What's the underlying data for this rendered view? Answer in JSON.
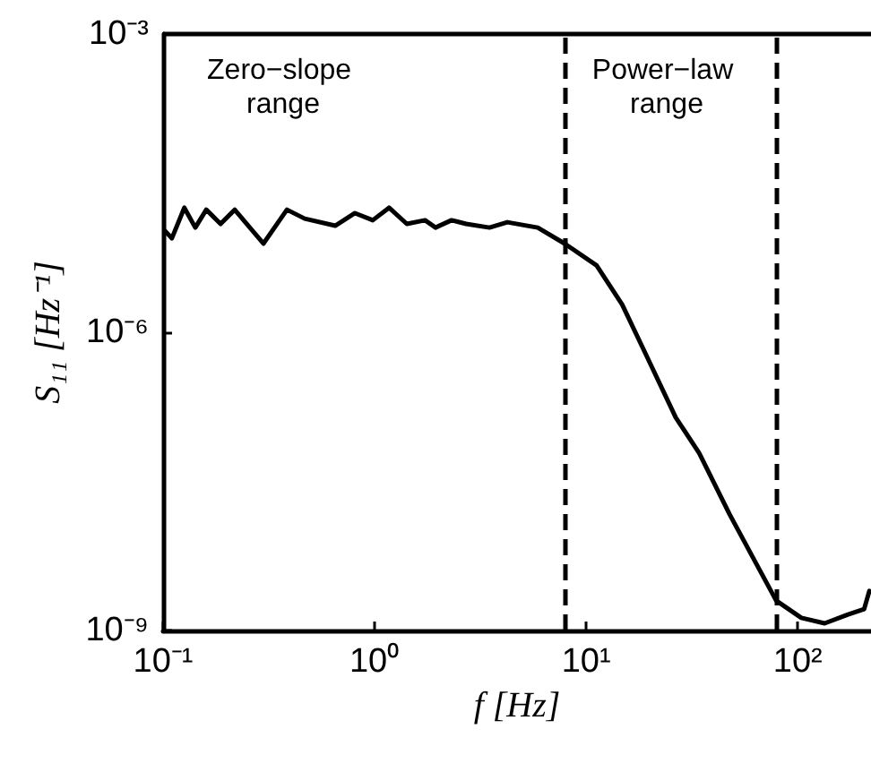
{
  "chart_data": {
    "type": "line",
    "xlabel": "f [Hz]",
    "ylabel": "S₁₁ [Hz⁻¹]",
    "x": [
      0.102,
      0.11,
      0.126,
      0.142,
      0.16,
      0.187,
      0.218,
      0.298,
      0.385,
      0.467,
      0.651,
      0.807,
      0.98,
      1.17,
      1.42,
      1.73,
      1.94,
      2.31,
      2.71,
      3.49,
      4.24,
      5.9,
      7.91,
      11.2,
      14.8,
      19.0,
      26.5,
      34.2,
      47.6,
      65.1,
      79.1,
      104,
      134,
      173,
      206,
      218
    ],
    "series": [
      {
        "color": "#000000",
        "values": [
          1.05e-05,
          8.8e-06,
          1.79e-05,
          1.13e-05,
          1.71e-05,
          1.23e-05,
          1.71e-05,
          7.8e-06,
          1.71e-05,
          1.39e-05,
          1.18e-05,
          1.58e-05,
          1.34e-05,
          1.79e-05,
          1.23e-05,
          1.34e-05,
          1.13e-05,
          1.34e-05,
          1.23e-05,
          1.13e-05,
          1.28e-05,
          1.13e-05,
          7.8e-06,
          4.7e-06,
          1.9e-06,
          6.2e-07,
          1.39e-07,
          6.1e-08,
          1.48e-08,
          4.3e-09,
          2e-09,
          1.34e-09,
          1.18e-09,
          1.45e-09,
          1.64e-09,
          2.5e-09
        ]
      }
    ],
    "log": "xy",
    "xlim": [
      0.1,
      222
    ],
    "ylim": [
      1e-09,
      0.001
    ],
    "xticks": [
      {
        "value": 0.1,
        "label": "10⁻¹"
      },
      {
        "value": 1,
        "label": "10⁰"
      },
      {
        "value": 10,
        "label": "10¹"
      },
      {
        "value": 100,
        "label": "10²"
      }
    ],
    "yticks": [
      {
        "value": 1e-09,
        "label": "10⁻⁹"
      },
      {
        "value": 1e-06,
        "label": "10⁻⁶"
      },
      {
        "value": 0.001,
        "label": "10⁻³"
      }
    ],
    "ref_lines": [
      {
        "axis": "x",
        "value": 8,
        "color": "#000000",
        "line_style": "dashed"
      },
      {
        "axis": "x",
        "value": 80,
        "color": "#000000",
        "line_style": "dashed"
      }
    ],
    "annotations": [
      "Zero−slope range",
      "Power−law range"
    ],
    "marker": "none",
    "line_style": "solid"
  }
}
